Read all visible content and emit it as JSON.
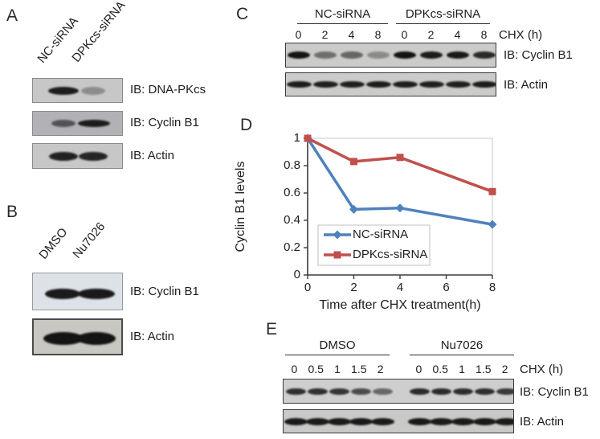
{
  "panels": {
    "A": {
      "letter": "A",
      "lane_labels": [
        "NC-siRNA",
        "DPKcs-siRNA"
      ],
      "blots": [
        {
          "label": "IB: DNA-PKcs",
          "bands": [
            0.95,
            0.32
          ]
        },
        {
          "label": "IB: Cyclin B1",
          "bands": [
            0.6,
            0.95
          ]
        },
        {
          "label": "IB: Actin",
          "bands": [
            0.92,
            0.9
          ]
        }
      ]
    },
    "B": {
      "letter": "B",
      "lane_labels": [
        "DMSO",
        "Nu7026"
      ],
      "blots": [
        {
          "label": "IB: Cyclin B1",
          "bands": [
            0.97,
            0.97
          ]
        },
        {
          "label": "IB: Actin",
          "bands": [
            1.0,
            1.0
          ]
        }
      ]
    },
    "C": {
      "letter": "C",
      "groups": [
        "NC-siRNA",
        "DPKcs-siRNA"
      ],
      "timepoints": [
        "0",
        "2",
        "4",
        "8"
      ],
      "time_unit_label": "CHX (h)",
      "blots": [
        {
          "label": "IB: Cyclin B1",
          "bands": [
            1.0,
            0.5,
            0.55,
            0.35,
            1.0,
            0.95,
            0.97,
            0.88
          ]
        },
        {
          "label": "IB: Actin",
          "bands": [
            0.95,
            0.93,
            0.93,
            0.95,
            0.94,
            0.93,
            0.93,
            0.95
          ]
        }
      ]
    },
    "D": {
      "letter": "D"
    },
    "E": {
      "letter": "E",
      "groups": [
        "DMSO",
        "Nu7026"
      ],
      "timepoints": [
        "0",
        "0.5",
        "1",
        "1.5",
        "2"
      ],
      "time_unit_label": "CHX (h)",
      "blots": [
        {
          "label": "IB: Cyclin B1",
          "bands": [
            0.85,
            0.85,
            0.82,
            0.7,
            0.55,
            0.88,
            0.88,
            0.86,
            0.85,
            0.8
          ]
        },
        {
          "label": "IB: Actin",
          "bands": [
            0.97,
            0.96,
            0.96,
            0.97,
            0.96,
            0.97,
            0.96,
            0.96,
            0.97,
            0.96
          ]
        }
      ]
    }
  },
  "chart_data": {
    "type": "line",
    "x": [
      0,
      2,
      4,
      8
    ],
    "series": [
      {
        "name": "NC-siRNA",
        "color": "#4f81bd",
        "marker": "diamond",
        "values": [
          1.0,
          0.48,
          0.49,
          0.37
        ]
      },
      {
        "name": "DPKcs-siRNA",
        "color": "#c0504d",
        "marker": "square",
        "values": [
          1.0,
          0.83,
          0.86,
          0.61
        ]
      }
    ],
    "title": "",
    "xlabel": "Time after CHX treatment(h)",
    "ylabel": "Cyclin B1 levels",
    "xlim": [
      0,
      8
    ],
    "ylim": [
      0,
      1
    ],
    "xticks": [
      0,
      2,
      4,
      6,
      8
    ],
    "yticks": [
      0,
      0.2,
      0.4,
      0.6,
      0.8,
      1
    ],
    "grid": false,
    "legend_position": "inside-bottom-left",
    "axis_color": "#3a3a3a",
    "plot_border_color": "#c9c9c9"
  }
}
